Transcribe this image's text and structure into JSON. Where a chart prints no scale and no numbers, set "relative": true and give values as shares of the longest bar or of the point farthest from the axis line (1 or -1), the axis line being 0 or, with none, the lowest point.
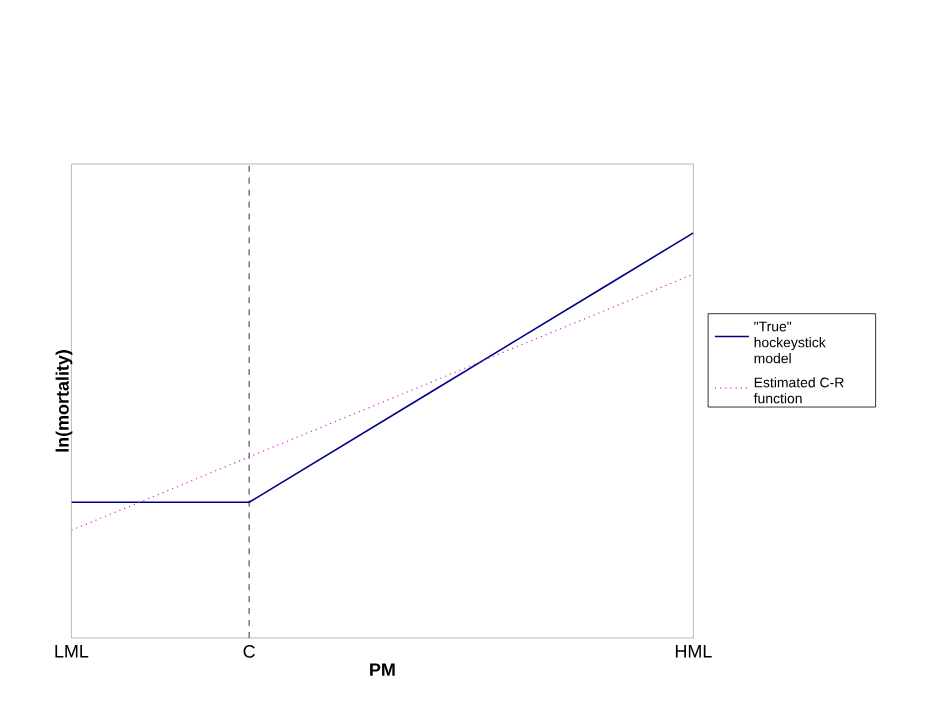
{
  "chart_data": {
    "type": "line",
    "relative": true,
    "xlabel": "PM",
    "ylabel": "ln(mortality)",
    "categories": [
      "LML",
      null,
      "C",
      null,
      null,
      null,
      null,
      "HML"
    ],
    "series": [
      {
        "name": "\"True\" hockeystick model",
        "color": "#00008b",
        "line_style": "solid",
        "values": [
          0.335,
          0.335,
          0.335,
          0.468,
          0.601,
          0.734,
          0.867,
          1
        ]
      },
      {
        "name": "Estimated C-R function",
        "color": "#e020e0",
        "line_style": "dotted",
        "values": [
          0.266,
          0.356,
          0.447,
          0.537,
          0.627,
          0.718,
          0.808,
          0.898
        ]
      }
    ],
    "ref_lines": [
      {
        "axis": "x",
        "value": "C",
        "color": "#000000",
        "line_style": "dashed"
      }
    ],
    "legend": "right"
  }
}
